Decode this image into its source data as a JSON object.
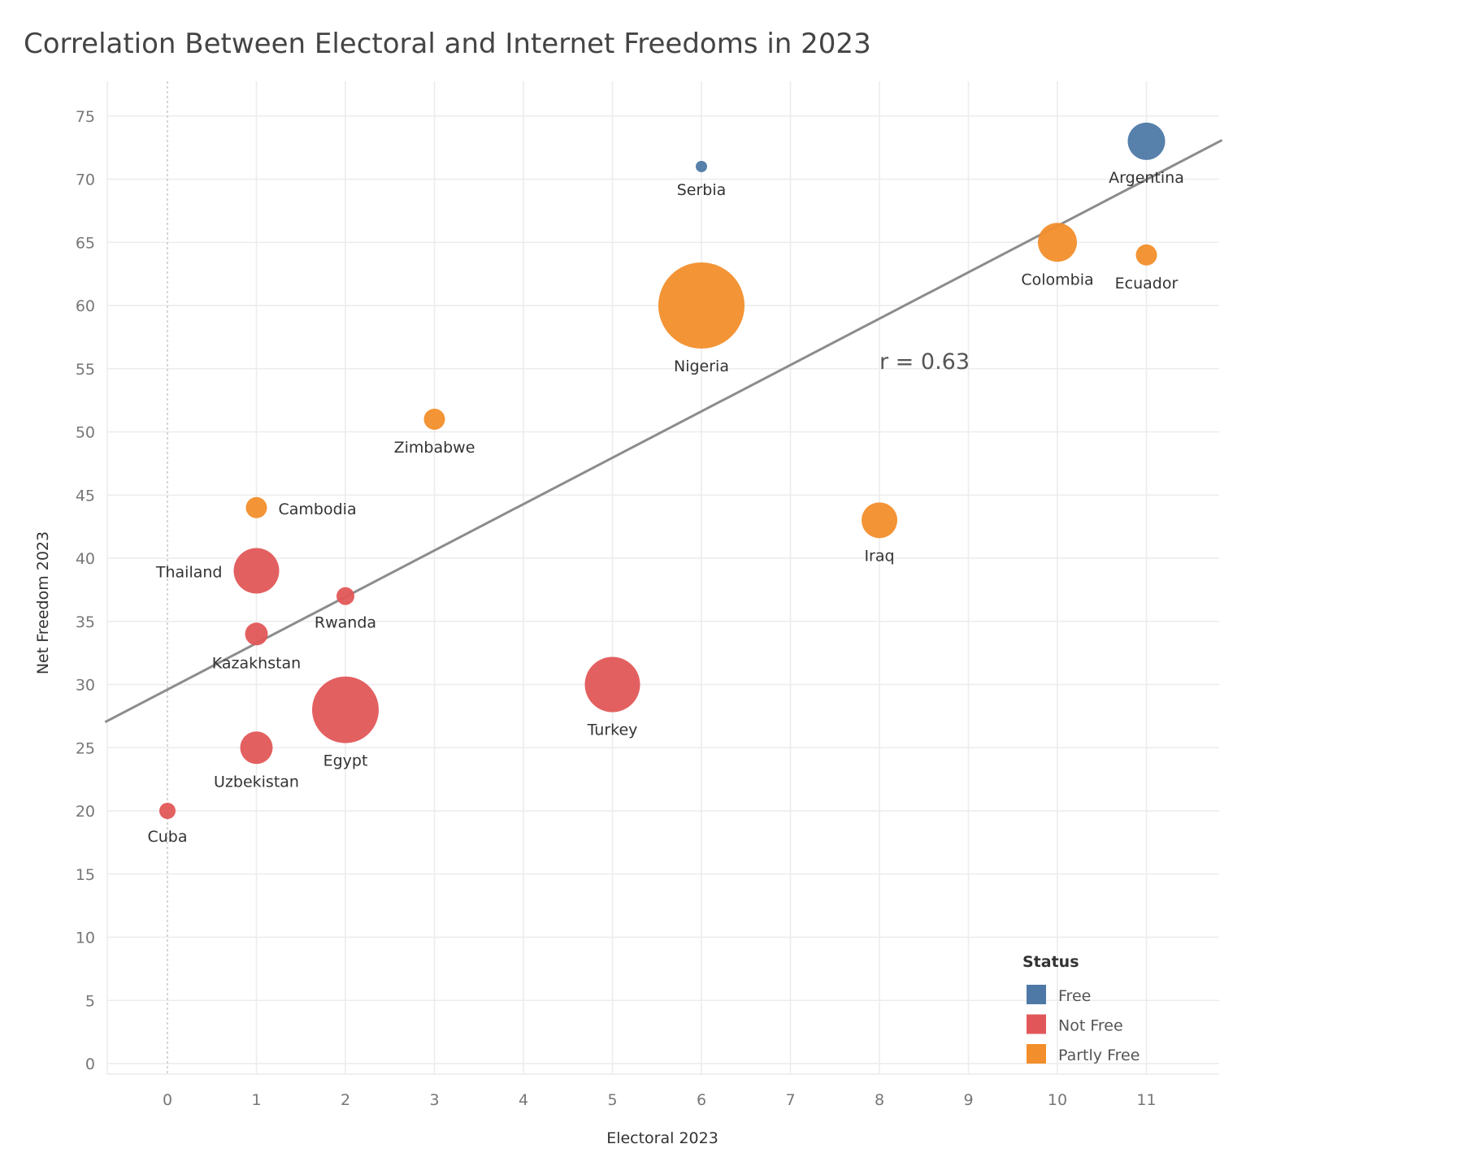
{
  "chart_data": {
    "type": "scatter",
    "title": "Correlation Between Electoral and Internet Freedoms in 2023",
    "xlabel": "Electoral 2023",
    "ylabel": "Net Freedom 2023",
    "xlim": [
      -0.7,
      11.85
    ],
    "ylim": [
      -1,
      78
    ],
    "xticks": [
      "0",
      "1",
      "2",
      "3",
      "4",
      "5",
      "6",
      "7",
      "8",
      "9",
      "10",
      "11"
    ],
    "yticks": [
      "0",
      "5",
      "10",
      "15",
      "20",
      "25",
      "30",
      "35",
      "40",
      "45",
      "50",
      "55",
      "60",
      "65",
      "70",
      "75"
    ],
    "grid": true,
    "annotation": "r = 0.63",
    "annotation_at": [
      8,
      55
    ],
    "trendline": {
      "slope": 3.67,
      "intercept": 29.6
    },
    "legend": {
      "title": "Status",
      "placement": "bottom-right",
      "items": [
        {
          "label": "Free",
          "color": "#4e79a7"
        },
        {
          "label": "Not Free",
          "color": "#e15759"
        },
        {
          "label": "Partly Free",
          "color": "#f28e2b"
        }
      ]
    },
    "points": [
      {
        "country": "Argentina",
        "x": 11,
        "y": 73,
        "status": "Free",
        "size": 11.5,
        "label_pos": "below"
      },
      {
        "country": "Serbia",
        "x": 6,
        "y": 71,
        "status": "Free",
        "size": 3.5,
        "label_pos": "below"
      },
      {
        "country": "Colombia",
        "x": 10,
        "y": 65,
        "status": "Partly Free",
        "size": 12,
        "label_pos": "below"
      },
      {
        "country": "Ecuador",
        "x": 11,
        "y": 64,
        "status": "Partly Free",
        "size": 6.5,
        "label_pos": "below"
      },
      {
        "country": "Nigeria",
        "x": 6,
        "y": 60,
        "status": "Partly Free",
        "size": 26.5,
        "label_pos": "below"
      },
      {
        "country": "Zimbabwe",
        "x": 3,
        "y": 51,
        "status": "Partly Free",
        "size": 6.5,
        "label_pos": "below"
      },
      {
        "country": "Cambodia",
        "x": 1,
        "y": 44,
        "status": "Partly Free",
        "size": 6.5,
        "label_pos": "right"
      },
      {
        "country": "Iraq",
        "x": 8,
        "y": 43,
        "status": "Partly Free",
        "size": 11,
        "label_pos": "below"
      },
      {
        "country": "Thailand",
        "x": 1,
        "y": 39,
        "status": "Not Free",
        "size": 14,
        "label_pos": "left"
      },
      {
        "country": "Rwanda",
        "x": 2,
        "y": 37,
        "status": "Not Free",
        "size": 5.5,
        "label_pos": "below"
      },
      {
        "country": "Kazakhstan",
        "x": 1,
        "y": 34,
        "status": "Not Free",
        "size": 7,
        "label_pos": "below"
      },
      {
        "country": "Turkey",
        "x": 5,
        "y": 30,
        "status": "Not Free",
        "size": 17,
        "label_pos": "below"
      },
      {
        "country": "Egypt",
        "x": 2,
        "y": 28,
        "status": "Not Free",
        "size": 20.5,
        "label_pos": "below"
      },
      {
        "country": "Uzbekistan",
        "x": 1,
        "y": 25,
        "status": "Not Free",
        "size": 10,
        "label_pos": "below"
      },
      {
        "country": "Cuba",
        "x": 0,
        "y": 20,
        "status": "Not Free",
        "size": 5,
        "label_pos": "below"
      }
    ]
  }
}
